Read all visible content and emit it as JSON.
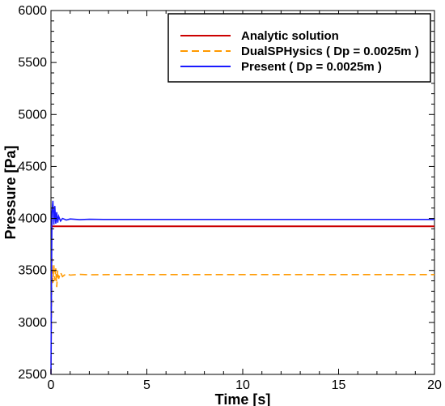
{
  "chart_data": {
    "type": "line",
    "xlabel": "Time [s]",
    "ylabel": "Pressure [Pa]",
    "xlim": [
      0,
      20
    ],
    "ylim": [
      2500,
      6000
    ],
    "x_ticks": [
      "0",
      "5",
      "10",
      "15",
      "20"
    ],
    "y_ticks": [
      "2500",
      "3000",
      "3500",
      "4000",
      "4500",
      "5000",
      "5500",
      "6000"
    ],
    "grid": false,
    "legend_position": "top-right",
    "series": [
      {
        "name": "Analytic solution",
        "color": "#cc0000",
        "dash": "solid",
        "x": [
          0,
          20
        ],
        "y": [
          3925,
          3925
        ]
      },
      {
        "name": "DualSPHysics ( Dp = 0.0025m )",
        "color": "#ff9900",
        "dash": "dashed",
        "x": [
          0,
          0.05,
          0.1,
          0.15,
          0.2,
          0.25,
          0.3,
          0.35,
          0.4,
          0.5,
          0.6,
          0.8,
          1.0,
          1.5,
          2,
          3,
          5,
          10,
          15,
          20
        ],
        "y": [
          2500,
          3620,
          3380,
          3550,
          3400,
          3520,
          3340,
          3500,
          3420,
          3480,
          3440,
          3470,
          3455,
          3462,
          3458,
          3460,
          3460,
          3460,
          3460,
          3460
        ]
      },
      {
        "name": "Present ( Dp = 0.0025m )",
        "color": "#1a1aff",
        "dash": "solid",
        "x": [
          0,
          0.05,
          0.1,
          0.15,
          0.2,
          0.25,
          0.3,
          0.35,
          0.4,
          0.5,
          0.6,
          0.8,
          1.0,
          1.5,
          2,
          3,
          5,
          10,
          15,
          20
        ],
        "y": [
          2500,
          4050,
          4170,
          3940,
          4120,
          3950,
          4060,
          3960,
          4020,
          3975,
          4000,
          3985,
          3995,
          3988,
          3992,
          3990,
          3990,
          3990,
          3990,
          3990
        ]
      }
    ]
  }
}
